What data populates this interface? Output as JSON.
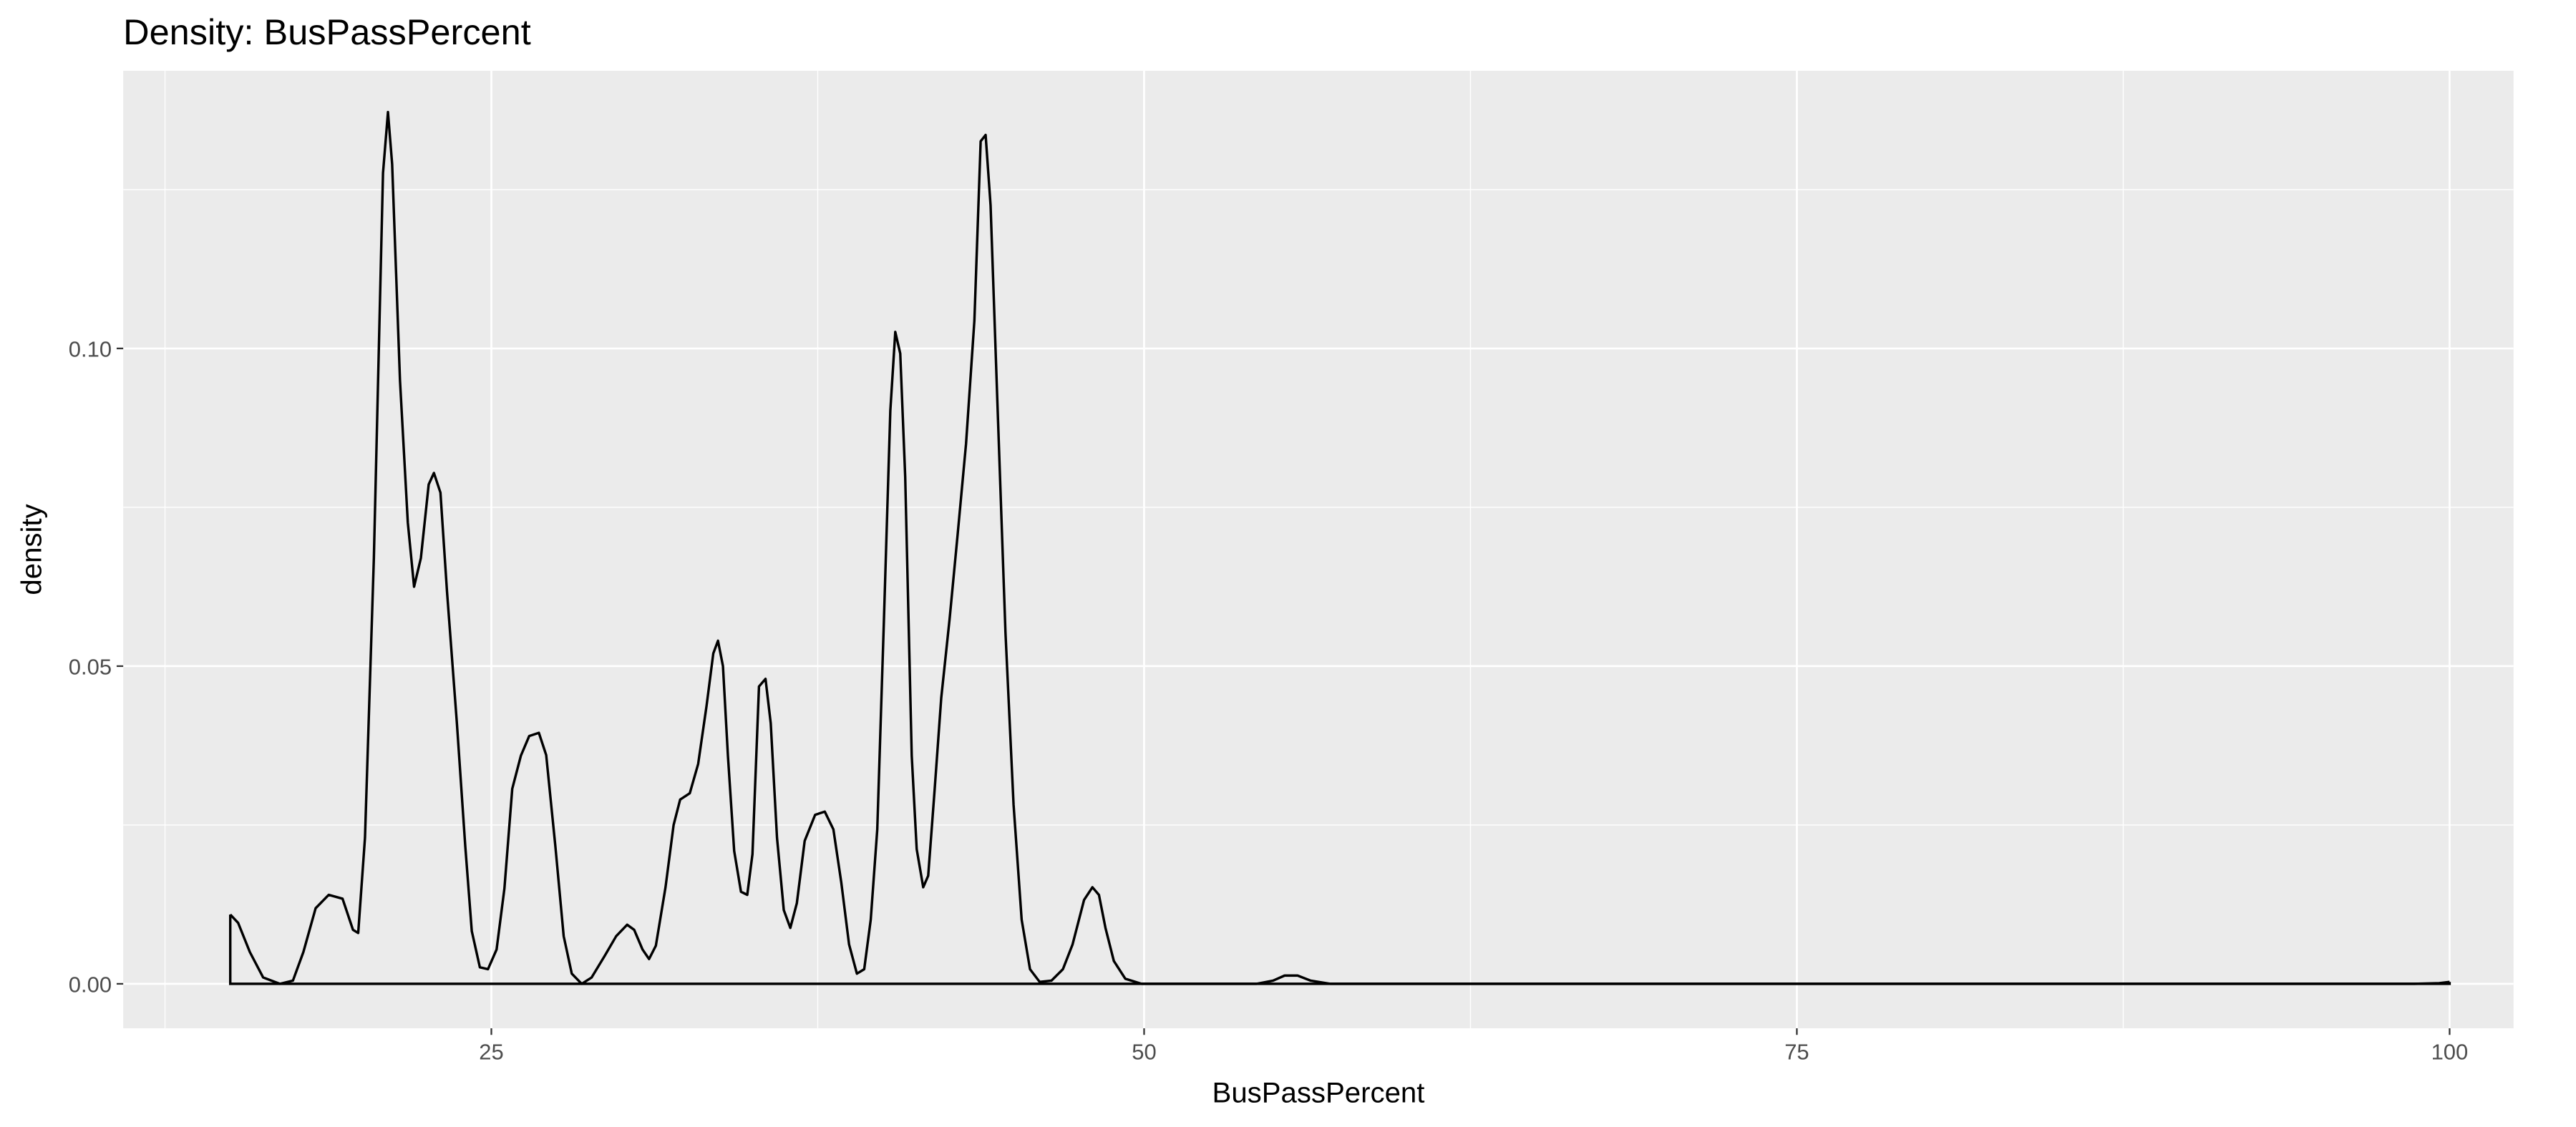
{
  "chart_data": {
    "type": "density",
    "title": "Density: BusPassPercent",
    "x_label": "BusPassPercent",
    "y_label": "density",
    "color": "#000000",
    "panel_color": "#ebebeb",
    "grid": true,
    "xlim": [
      10.9,
      102.45
    ],
    "ylim": [
      -0.007,
      0.1437
    ],
    "xticks": [
      25,
      50,
      75,
      100
    ],
    "xminor": [
      12.5,
      37.5,
      62.5,
      87.5
    ],
    "yticks": [
      {
        "value": 0,
        "label": "0.00"
      },
      {
        "value": 0.05,
        "label": "0.05"
      },
      {
        "value": 0.1,
        "label": "0.10"
      }
    ],
    "yminor": [
      0.025,
      0.075,
      0.125
    ],
    "x": [
      15.0,
      15.3,
      15.75,
      16.26,
      16.9,
      17.4,
      17.8,
      18.27,
      18.77,
      19.3,
      19.7,
      19.9,
      20.16,
      20.5,
      20.85,
      21.04,
      21.2,
      21.5,
      21.8,
      22.04,
      22.3,
      22.6,
      22.8,
      23.05,
      23.3,
      23.68,
      24.0,
      24.25,
      24.56,
      24.87,
      25.2,
      25.5,
      25.8,
      26.13,
      26.45,
      26.82,
      27.1,
      27.45,
      27.77,
      28.08,
      28.46,
      28.84,
      29.34,
      29.78,
      30.2,
      30.47,
      30.79,
      31.04,
      31.3,
      31.67,
      31.98,
      32.23,
      32.6,
      32.92,
      33.24,
      33.5,
      33.68,
      33.87,
      34.06,
      34.3,
      34.56,
      34.8,
      35.0,
      35.25,
      35.5,
      35.7,
      35.94,
      36.2,
      36.45,
      36.7,
      37.0,
      37.4,
      37.77,
      38.1,
      38.4,
      38.7,
      39.0,
      39.28,
      39.53,
      39.78,
      40.03,
      40.28,
      40.47,
      40.66,
      40.85,
      41.1,
      41.29,
      41.54,
      41.73,
      41.98,
      42.23,
      42.55,
      42.86,
      43.18,
      43.5,
      43.74,
      43.93,
      44.12,
      44.37,
      44.69,
      45.0,
      45.31,
      45.63,
      46.0,
      46.45,
      46.89,
      47.26,
      47.7,
      48.02,
      48.27,
      48.52,
      48.84,
      49.28,
      49.9,
      51.48,
      54.3,
      54.94,
      55.38,
      55.88,
      56.38,
      57.14,
      98.65,
      99.6,
      100
    ],
    "values": [
      0.0109,
      0.0096,
      0.005,
      0.001,
      0,
      0.0005,
      0.005,
      0.0119,
      0.014,
      0.0134,
      0.0085,
      0.008,
      0.023,
      0.067,
      0.1276,
      0.1372,
      0.129,
      0.095,
      0.0726,
      0.0625,
      0.067,
      0.0786,
      0.0804,
      0.0773,
      0.0618,
      0.041,
      0.0217,
      0.0083,
      0.0026,
      0.0023,
      0.0054,
      0.015,
      0.0307,
      0.0359,
      0.039,
      0.0395,
      0.036,
      0.0217,
      0.0075,
      0.0016,
      0,
      0.001,
      0.0044,
      0.0075,
      0.0093,
      0.0085,
      0.0054,
      0.0039,
      0.006,
      0.0152,
      0.025,
      0.029,
      0.03,
      0.0346,
      0.0437,
      0.052,
      0.054,
      0.05,
      0.0359,
      0.0209,
      0.0145,
      0.014,
      0.0204,
      0.0468,
      0.048,
      0.041,
      0.023,
      0.0116,
      0.0088,
      0.0127,
      0.0225,
      0.0266,
      0.0271,
      0.0243,
      0.016,
      0.0062,
      0.0016,
      0.0023,
      0.0101,
      0.0243,
      0.0566,
      0.0902,
      0.1026,
      0.0992,
      0.0798,
      0.0359,
      0.0212,
      0.0152,
      0.017,
      0.0307,
      0.045,
      0.0574,
      0.0708,
      0.085,
      0.1044,
      0.1326,
      0.1336,
      0.1225,
      0.0928,
      0.0553,
      0.0282,
      0.0101,
      0.0023,
      0.0003,
      0.0005,
      0.0023,
      0.0062,
      0.0132,
      0.0152,
      0.014,
      0.0088,
      0.0036,
      0.0008,
      0,
      0,
      0,
      0.0005,
      0.0013,
      0.0013,
      0.0005,
      0,
      0,
      0.0001,
      0.0003
    ]
  }
}
